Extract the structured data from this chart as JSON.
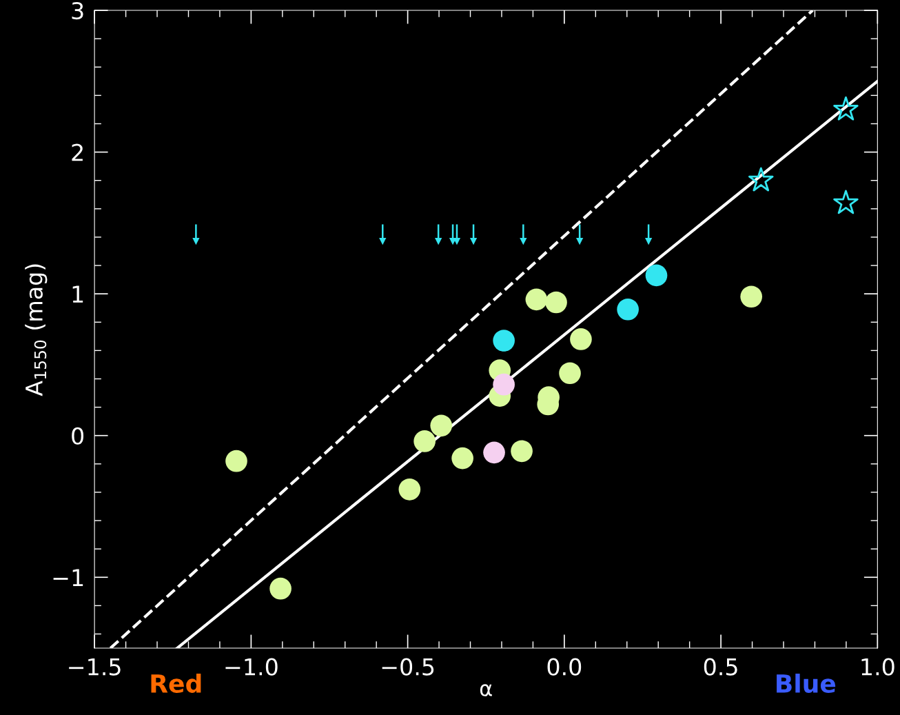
{
  "chart_data": {
    "type": "scatter",
    "xlabel": "α",
    "ylabel": "A$_{1550}$ (mag)",
    "xlim": [
      -1.5,
      1.0
    ],
    "ylim": [
      -1.5,
      3.0
    ],
    "xticks": [
      {
        "value": -1.5,
        "label": "−1.5"
      },
      {
        "value": -1.0,
        "label": "−1.0"
      },
      {
        "value": -0.5,
        "label": "−0.5"
      },
      {
        "value": 0.0,
        "label": "0.0"
      },
      {
        "value": 0.5,
        "label": "0.5"
      },
      {
        "value": 1.0,
        "label": "1.0"
      }
    ],
    "yticks": [
      {
        "value": -1,
        "label": "−1"
      },
      0,
      1,
      2,
      3
    ],
    "grid": false,
    "annotations": [
      "Red",
      "Blue"
    ],
    "series": [
      {
        "marker": "circle",
        "color": "#d9f99d",
        "x": [
          -1.047,
          -0.906,
          -0.494,
          -0.446,
          -0.393,
          -0.325,
          -0.206,
          -0.206,
          -0.136,
          -0.089,
          -0.026,
          -0.05,
          -0.052,
          0.018,
          0.053,
          0.597
        ],
        "values": [
          -0.18,
          -1.08,
          -0.38,
          -0.04,
          0.07,
          -0.16,
          0.46,
          0.28,
          -0.11,
          0.96,
          0.94,
          0.27,
          0.22,
          0.44,
          0.68,
          0.98
        ]
      },
      {
        "marker": "circle",
        "color": "#33e5f0",
        "x": [
          -0.193,
          0.203,
          0.294
        ],
        "values": [
          0.67,
          0.89,
          1.13
        ]
      },
      {
        "marker": "circle",
        "color": "#f5d0f0",
        "x": [
          -0.224,
          -0.193
        ],
        "values": [
          -0.12,
          0.36
        ]
      },
      {
        "marker": "star",
        "color": "#33e5f0",
        "x": [
          0.628,
          0.899,
          0.899
        ],
        "values": [
          1.8,
          2.3,
          1.64
        ]
      },
      {
        "marker": "triangle",
        "color": "#33e5f0",
        "x": [
          -1.176,
          -0.58,
          -0.402,
          -0.356,
          -0.343,
          -0.29,
          -0.131,
          0.049,
          0.269
        ],
        "values": [
          1.37,
          1.37,
          1.37,
          1.37,
          1.37,
          1.37,
          1.37,
          1.37,
          1.37
        ],
        "errors": [
          [
            1.37,
            1.49
          ],
          [
            1.37,
            1.49
          ],
          [
            1.37,
            1.49
          ],
          [
            1.37,
            1.49
          ],
          [
            1.37,
            1.49
          ],
          [
            1.37,
            1.49
          ],
          [
            1.37,
            1.49
          ],
          [
            1.37,
            1.49
          ],
          [
            1.37,
            1.49
          ]
        ]
      },
      {
        "type": "line",
        "line_style": "solid",
        "color": "#ffffff",
        "x": [
          -1.236,
          1.0
        ],
        "values": [
          -1.5,
          2.5
        ]
      },
      {
        "type": "line",
        "line_style": "dashed",
        "color": "#ffffff",
        "x": [
          -1.449,
          0.793
        ],
        "values": [
          -1.5,
          3.0
        ]
      }
    ]
  }
}
